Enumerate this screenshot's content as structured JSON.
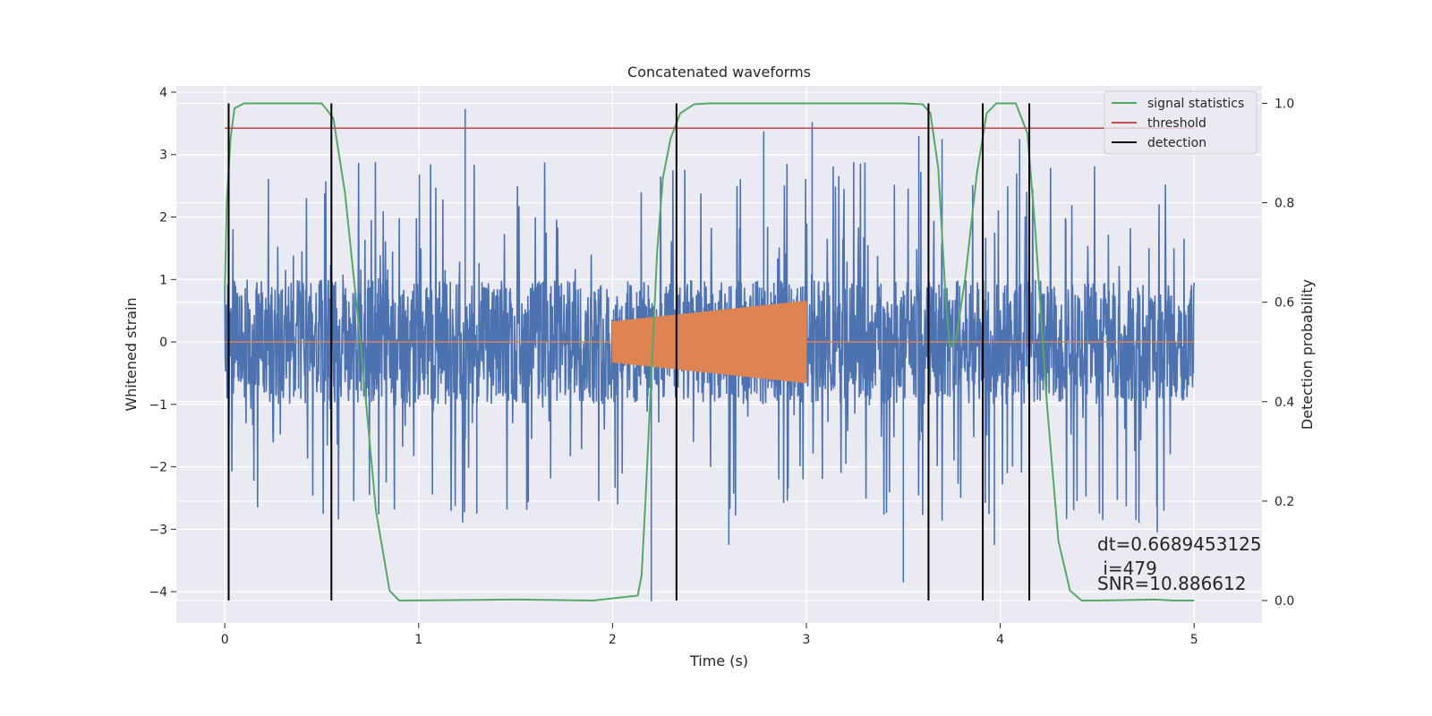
{
  "chart_data": {
    "type": "line",
    "title": "Concatenated waveforms",
    "xlabel": "Time (s)",
    "ylabel": "Whitened strain",
    "y2label": "Detection probability",
    "xlim": [
      -0.25,
      5.35
    ],
    "ylim": [
      -4.5,
      4.1
    ],
    "y2lim": [
      -0.045,
      1.035
    ],
    "x_ticks": [
      0,
      1,
      2,
      3,
      4,
      5
    ],
    "y_ticks": [
      -4,
      -3,
      -2,
      -1,
      0,
      1,
      2,
      3,
      4
    ],
    "y2_ticks": [
      0.0,
      0.2,
      0.4,
      0.6,
      0.8,
      1.0
    ],
    "y2_tick_labels": [
      "0.0",
      "0.2",
      "0.4",
      "0.6",
      "0.8",
      "1.0"
    ],
    "grid": true,
    "legend_position": "top-right",
    "series": [
      {
        "name": "",
        "axis": "left",
        "color": "#4c72b0",
        "kind": "noise",
        "x_range": [
          0,
          5
        ],
        "amplitude_typical": 1.0,
        "peaks": [
          [
            1.24,
            3.73
          ],
          [
            3.03,
            3.52
          ],
          [
            2.2,
            -4.15
          ],
          [
            3.5,
            -3.85
          ],
          [
            2.78,
            3.37
          ],
          [
            3.58,
            3.3
          ],
          [
            3.7,
            3.25
          ],
          [
            4.1,
            3.25
          ],
          [
            0.55,
            3.1
          ],
          [
            4.81,
            -3.05
          ],
          [
            4.7,
            -2.85
          ],
          [
            2.6,
            -3.25
          ],
          [
            3.97,
            -3.25
          ],
          [
            1.3,
            -2.75
          ],
          [
            0.02,
            -2.1
          ]
        ]
      },
      {
        "name": "",
        "axis": "left",
        "color": "#dd8452",
        "kind": "chirp",
        "x": [
          0,
          2.0,
          2.0,
          3.0,
          3.0,
          5.0
        ],
        "envelope": [
          0,
          0.33,
          0.33,
          0.66,
          0.66,
          0
        ]
      },
      {
        "name": "signal statistics",
        "axis": "right",
        "color": "#55a868",
        "x": [
          0.0,
          0.01,
          0.03,
          0.05,
          0.1,
          0.5,
          0.56,
          0.62,
          0.7,
          0.78,
          0.85,
          0.9,
          1.5,
          1.9,
          2.13,
          2.15,
          2.17,
          2.2,
          2.23,
          2.26,
          2.3,
          2.35,
          2.42,
          2.5,
          3.0,
          3.5,
          3.6,
          3.64,
          3.68,
          3.72,
          3.74,
          3.77,
          3.82,
          3.88,
          3.93,
          3.98,
          4.08,
          4.14,
          4.18,
          4.24,
          4.3,
          4.36,
          4.42,
          4.5,
          4.8,
          4.9,
          5.0
        ],
        "values": [
          0.62,
          0.8,
          0.93,
          0.99,
          1.0,
          1.0,
          0.97,
          0.82,
          0.52,
          0.18,
          0.02,
          0.0,
          0.002,
          0.0,
          0.01,
          0.05,
          0.2,
          0.45,
          0.7,
          0.85,
          0.93,
          0.98,
          0.998,
          1.0,
          1.0,
          1.0,
          0.998,
          0.98,
          0.87,
          0.6,
          0.51,
          0.52,
          0.65,
          0.86,
          0.98,
          1.0,
          1.0,
          0.94,
          0.75,
          0.4,
          0.12,
          0.02,
          0.0,
          0.0,
          0.002,
          0.0,
          0.0
        ]
      },
      {
        "name": "threshold",
        "axis": "right",
        "color": "#c44e52",
        "x": [
          0,
          5
        ],
        "values": [
          0.95,
          0.95
        ]
      },
      {
        "name": "detection",
        "axis": "right",
        "color": "#000000",
        "kind": "vlines",
        "x": [
          0.02,
          0.55,
          2.33,
          3.63,
          3.91,
          4.15
        ]
      }
    ],
    "annotations": [
      "dt=0.6689453125",
      " i=479",
      "SNR=10.886612"
    ]
  }
}
